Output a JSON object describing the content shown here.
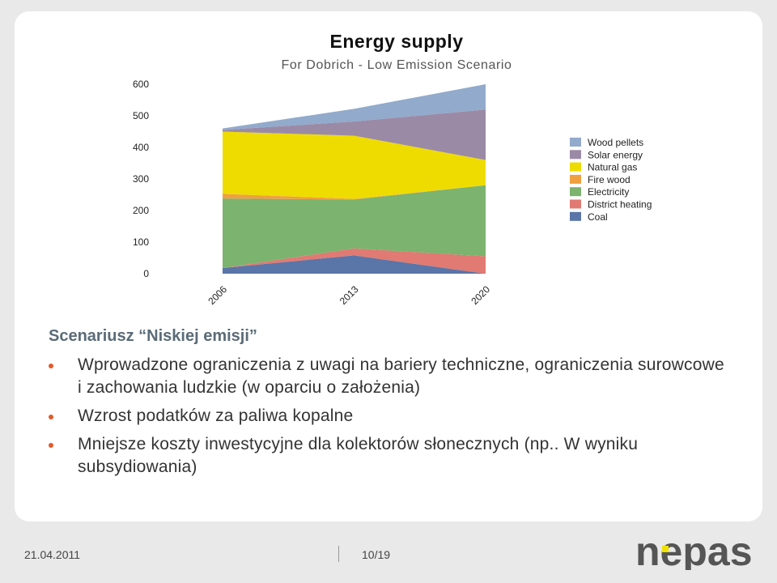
{
  "chart_data": {
    "type": "area",
    "title": "Energy supply",
    "subtitle": "For Dobrich - Low Emission Scenario",
    "x": [
      "2006",
      "2013",
      "2020"
    ],
    "yticks": [
      0,
      100,
      200,
      300,
      400,
      500,
      600
    ],
    "ylim": [
      0,
      600
    ],
    "stacked": true,
    "legend_position": "right",
    "series": [
      {
        "name": "Coal",
        "color": "#5a75a8",
        "values": [
          18,
          58,
          0
        ]
      },
      {
        "name": "District heating",
        "color": "#e07a72",
        "values": [
          0,
          22,
          55
        ]
      },
      {
        "name": "Electricity",
        "color": "#7bb36f",
        "values": [
          220,
          155,
          225
        ]
      },
      {
        "name": "Fire wood",
        "color": "#f0a040",
        "values": [
          15,
          2,
          0
        ]
      },
      {
        "name": "Natural gas",
        "color": "#eedc00",
        "values": [
          197,
          200,
          80
        ]
      },
      {
        "name": "Solar energy",
        "color": "#9b8aa6",
        "values": [
          5,
          45,
          160
        ]
      },
      {
        "name": "Wood pellets",
        "color": "#92aacb",
        "values": [
          5,
          40,
          80
        ]
      }
    ],
    "legend_order": [
      "Wood pellets",
      "Solar energy",
      "Natural gas",
      "Fire wood",
      "Electricity",
      "District heating",
      "Coal"
    ]
  },
  "text": {
    "heading": "Scenariusz “Niskiej emisji”",
    "bullets": [
      "Wprowadzone ograniczenia z uwagi na bariery techniczne, ograniczenia surowcowe i zachowania ludzkie (w oparciu o założenia)",
      "Wzrost podatków za paliwa kopalne",
      "Mniejsze koszty inwestycyjne dla kolektorów słonecznych (np.. W wyniku subsydiowania)"
    ]
  },
  "footer": {
    "date": "21.04.2011",
    "page": "10/19",
    "logo": "nepas",
    "logo_color": "#555555",
    "logo_accent": "#f0e000"
  }
}
